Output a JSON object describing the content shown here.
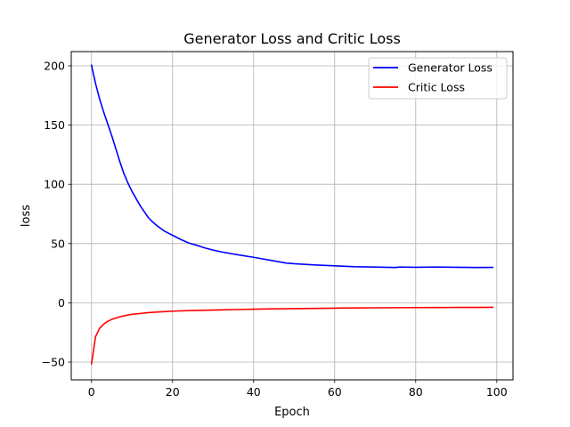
{
  "chart_data": {
    "type": "line",
    "title": "Generator Loss and Critic Loss",
    "xlabel": "Epoch",
    "ylabel": "loss",
    "xlim": [
      -5,
      104
    ],
    "ylim": [
      -65,
      212
    ],
    "xticks": [
      0,
      20,
      40,
      60,
      80,
      100
    ],
    "yticks": [
      -50,
      0,
      50,
      100,
      150,
      200
    ],
    "xtick_labels": [
      "0",
      "20",
      "40",
      "60",
      "80",
      "100"
    ],
    "ytick_labels": [
      "−50",
      "0",
      "50",
      "100",
      "150",
      "200"
    ],
    "grid": true,
    "legend_position": "top-right",
    "series": [
      {
        "name": "Generator Loss",
        "color": "#0000ff",
        "x": [
          0,
          1,
          2,
          3,
          4,
          5,
          6,
          7,
          8,
          9,
          10,
          11,
          12,
          13,
          14,
          15,
          16,
          17,
          18,
          19,
          20,
          22,
          24,
          26,
          28,
          30,
          32,
          34,
          36,
          38,
          40,
          42,
          44,
          46,
          48,
          50,
          55,
          60,
          65,
          70,
          75,
          76,
          80,
          85,
          88,
          90,
          95,
          99
        ],
        "y": [
          200.5,
          185,
          172,
          161,
          151,
          141,
          130,
          119,
          109,
          101,
          94,
          88,
          82,
          77,
          72,
          68.5,
          65.5,
          63,
          60.5,
          58.7,
          57,
          53.5,
          50.5,
          48.5,
          46.3,
          44.5,
          43,
          41.8,
          40.6,
          39.5,
          38.4,
          37.2,
          36,
          34.8,
          33.6,
          33,
          32,
          31.2,
          30.5,
          30.2,
          29.8,
          30.2,
          30,
          30.2,
          30.1,
          30,
          29.8,
          29.9
        ]
      },
      {
        "name": "Critic Loss",
        "color": "#ff0000",
        "x": [
          0,
          1,
          2,
          3,
          4,
          5,
          6,
          7,
          8,
          9,
          10,
          12,
          14,
          16,
          18,
          20,
          25,
          30,
          35,
          40,
          45,
          50,
          55,
          60,
          65,
          70,
          75,
          80,
          85,
          90,
          95,
          99
        ],
        "y": [
          -51.5,
          -28.5,
          -21.5,
          -18,
          -15.6,
          -14,
          -12.8,
          -11.8,
          -11,
          -10.3,
          -9.7,
          -9,
          -8.3,
          -7.8,
          -7.4,
          -7,
          -6.5,
          -6.1,
          -5.7,
          -5.4,
          -5.1,
          -4.9,
          -4.7,
          -4.5,
          -4.3,
          -4.2,
          -4.1,
          -4,
          -3.95,
          -3.9,
          -3.85,
          -3.8
        ]
      }
    ]
  }
}
